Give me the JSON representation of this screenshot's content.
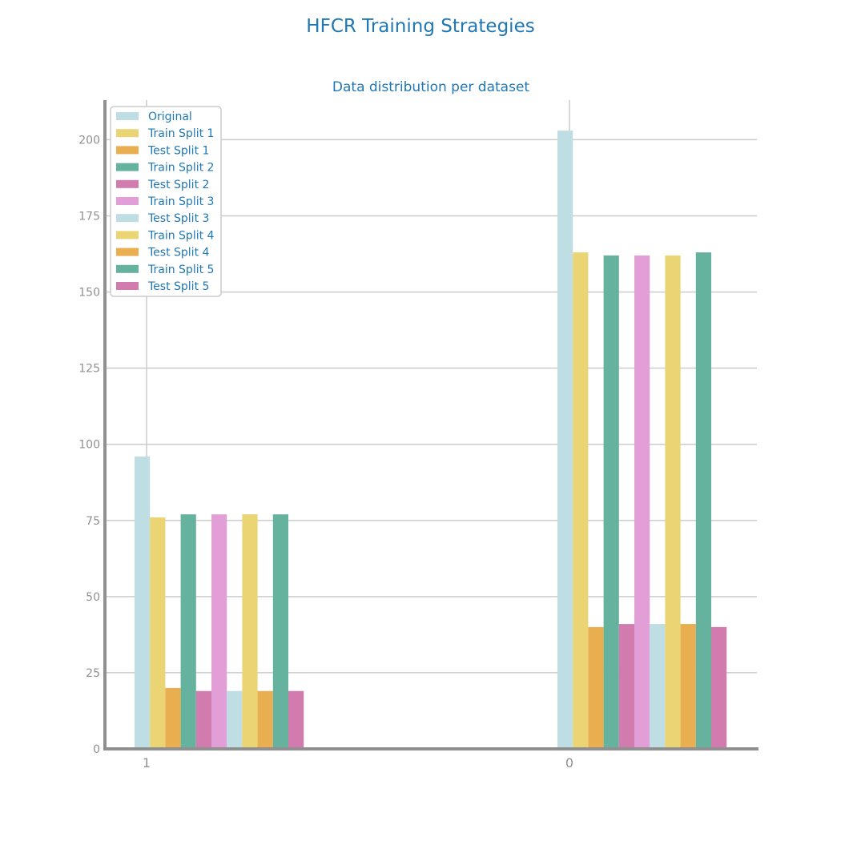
{
  "title": "HFCR Training Strategies",
  "chart_data": {
    "type": "bar",
    "title": "Data distribution per dataset",
    "xlabel": "",
    "ylabel": "",
    "categories": [
      "1",
      "0"
    ],
    "ylim": [
      0,
      213
    ],
    "yticks": [
      0,
      25,
      50,
      75,
      100,
      125,
      150,
      175,
      200
    ],
    "grid": true,
    "legend_position": "top-left",
    "series": [
      {
        "name": "Original",
        "color": "#bfdee3",
        "values": [
          96,
          203
        ]
      },
      {
        "name": "Train Split 1",
        "color": "#ead474",
        "values": [
          76,
          163
        ]
      },
      {
        "name": "Test Split 1",
        "color": "#e8ae50",
        "values": [
          20,
          40
        ]
      },
      {
        "name": "Train Split 2",
        "color": "#65b29e",
        "values": [
          77,
          162
        ]
      },
      {
        "name": "Test Split 2",
        "color": "#d17bae",
        "values": [
          19,
          41
        ]
      },
      {
        "name": "Train Split 3",
        "color": "#e29ed6",
        "values": [
          77,
          162
        ]
      },
      {
        "name": "Test Split 3",
        "color": "#bfdee3",
        "values": [
          19,
          41
        ]
      },
      {
        "name": "Train Split 4",
        "color": "#ead474",
        "values": [
          77,
          162
        ]
      },
      {
        "name": "Test Split 4",
        "color": "#e8ae50",
        "values": [
          19,
          41
        ]
      },
      {
        "name": "Train Split 5",
        "color": "#65b29e",
        "values": [
          77,
          163
        ]
      },
      {
        "name": "Test Split 5",
        "color": "#d17bae",
        "values": [
          19,
          40
        ]
      }
    ]
  }
}
